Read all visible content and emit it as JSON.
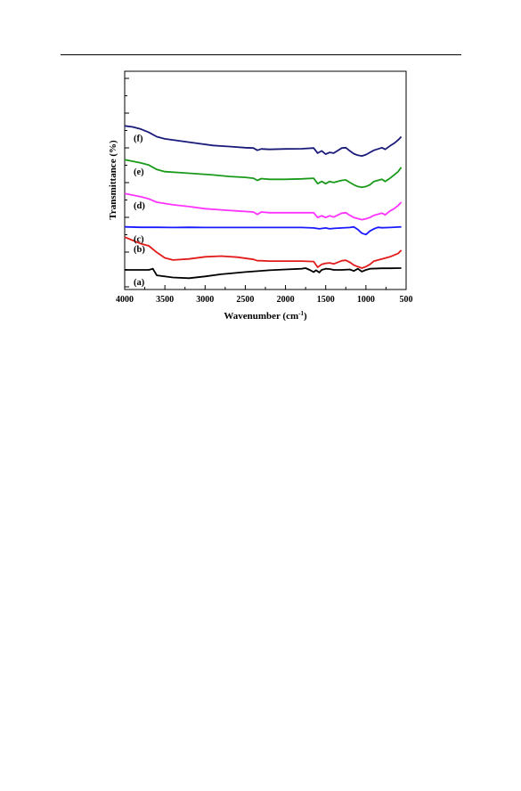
{
  "chart_data": {
    "type": "line",
    "title": "",
    "xlabel": "Wavenumber (cm",
    "xlabel_sup": "-1",
    "xlabel_close": ")",
    "ylabel": "Transmittance (%)",
    "xlim": [
      4000,
      500
    ],
    "x_reversed": true,
    "x_ticks": [
      4000,
      3500,
      3000,
      2500,
      2000,
      1500,
      1000,
      500
    ],
    "x_tick_labels": [
      "4000",
      "3500",
      "3000",
      "2500",
      "2000",
      "1500",
      "1000",
      "500"
    ],
    "y_ticks_labeled": false,
    "grid": false,
    "legend": "none",
    "series": [
      {
        "name": "(a)",
        "color": "#000000",
        "points": [
          [
            4000,
            0.91
          ],
          [
            3700,
            0.91
          ],
          [
            3650,
            0.905
          ],
          [
            3600,
            0.935
          ],
          [
            3400,
            0.945
          ],
          [
            3200,
            0.948
          ],
          [
            3000,
            0.94
          ],
          [
            2800,
            0.93
          ],
          [
            2500,
            0.92
          ],
          [
            2200,
            0.912
          ],
          [
            2000,
            0.908
          ],
          [
            1800,
            0.905
          ],
          [
            1750,
            0.902
          ],
          [
            1700,
            0.91
          ],
          [
            1650,
            0.92
          ],
          [
            1620,
            0.912
          ],
          [
            1580,
            0.922
          ],
          [
            1550,
            0.91
          ],
          [
            1500,
            0.905
          ],
          [
            1450,
            0.906
          ],
          [
            1400,
            0.91
          ],
          [
            1300,
            0.91
          ],
          [
            1200,
            0.908
          ],
          [
            1150,
            0.915
          ],
          [
            1100,
            0.905
          ],
          [
            1050,
            0.918
          ],
          [
            1000,
            0.91
          ],
          [
            950,
            0.905
          ],
          [
            800,
            0.903
          ],
          [
            700,
            0.903
          ],
          [
            600,
            0.902
          ],
          [
            560,
            0.902
          ]
        ]
      },
      {
        "name": "(b)",
        "color": "#e21a1a",
        "points": [
          [
            4000,
            0.76
          ],
          [
            3800,
            0.79
          ],
          [
            3700,
            0.8
          ],
          [
            3600,
            0.83
          ],
          [
            3500,
            0.855
          ],
          [
            3400,
            0.865
          ],
          [
            3200,
            0.86
          ],
          [
            3000,
            0.85
          ],
          [
            2800,
            0.847
          ],
          [
            2600,
            0.852
          ],
          [
            2400,
            0.862
          ],
          [
            2350,
            0.868
          ],
          [
            2300,
            0.868
          ],
          [
            2200,
            0.87
          ],
          [
            2000,
            0.87
          ],
          [
            1800,
            0.87
          ],
          [
            1650,
            0.872
          ],
          [
            1600,
            0.898
          ],
          [
            1550,
            0.885
          ],
          [
            1500,
            0.88
          ],
          [
            1450,
            0.878
          ],
          [
            1400,
            0.883
          ],
          [
            1300,
            0.868
          ],
          [
            1250,
            0.866
          ],
          [
            1200,
            0.875
          ],
          [
            1150,
            0.888
          ],
          [
            1100,
            0.895
          ],
          [
            1050,
            0.902
          ],
          [
            1000,
            0.895
          ],
          [
            950,
            0.885
          ],
          [
            900,
            0.87
          ],
          [
            800,
            0.86
          ],
          [
            700,
            0.85
          ],
          [
            600,
            0.835
          ],
          [
            560,
            0.82
          ]
        ]
      },
      {
        "name": "(c)",
        "color": "#1a1aff",
        "points": [
          [
            4000,
            0.713
          ],
          [
            3800,
            0.715
          ],
          [
            3600,
            0.715
          ],
          [
            3400,
            0.716
          ],
          [
            3200,
            0.715
          ],
          [
            3000,
            0.716
          ],
          [
            2800,
            0.716
          ],
          [
            2600,
            0.716
          ],
          [
            2400,
            0.716
          ],
          [
            2200,
            0.716
          ],
          [
            2000,
            0.716
          ],
          [
            1800,
            0.716
          ],
          [
            1650,
            0.718
          ],
          [
            1580,
            0.722
          ],
          [
            1500,
            0.718
          ],
          [
            1450,
            0.722
          ],
          [
            1400,
            0.72
          ],
          [
            1300,
            0.718
          ],
          [
            1200,
            0.716
          ],
          [
            1150,
            0.713
          ],
          [
            1100,
            0.725
          ],
          [
            1050,
            0.742
          ],
          [
            1000,
            0.748
          ],
          [
            950,
            0.732
          ],
          [
            900,
            0.722
          ],
          [
            850,
            0.715
          ],
          [
            800,
            0.717
          ],
          [
            700,
            0.716
          ],
          [
            600,
            0.714
          ],
          [
            560,
            0.713
          ]
        ]
      },
      {
        "name": "(d)",
        "color": "#ff33ff",
        "points": [
          [
            4000,
            0.56
          ],
          [
            3800,
            0.575
          ],
          [
            3700,
            0.585
          ],
          [
            3600,
            0.6
          ],
          [
            3400,
            0.612
          ],
          [
            3200,
            0.62
          ],
          [
            3000,
            0.63
          ],
          [
            2800,
            0.635
          ],
          [
            2600,
            0.64
          ],
          [
            2400,
            0.645
          ],
          [
            2350,
            0.656
          ],
          [
            2300,
            0.645
          ],
          [
            2200,
            0.648
          ],
          [
            2000,
            0.648
          ],
          [
            1800,
            0.648
          ],
          [
            1650,
            0.648
          ],
          [
            1600,
            0.67
          ],
          [
            1550,
            0.662
          ],
          [
            1500,
            0.67
          ],
          [
            1450,
            0.662
          ],
          [
            1400,
            0.668
          ],
          [
            1300,
            0.65
          ],
          [
            1250,
            0.648
          ],
          [
            1200,
            0.66
          ],
          [
            1150,
            0.67
          ],
          [
            1100,
            0.675
          ],
          [
            1050,
            0.68
          ],
          [
            1000,
            0.676
          ],
          [
            950,
            0.67
          ],
          [
            900,
            0.66
          ],
          [
            800,
            0.65
          ],
          [
            760,
            0.658
          ],
          [
            700,
            0.64
          ],
          [
            650,
            0.63
          ],
          [
            600,
            0.615
          ],
          [
            560,
            0.6
          ]
        ]
      },
      {
        "name": "(e)",
        "color": "#1a9a1a",
        "points": [
          [
            4000,
            0.405
          ],
          [
            3800,
            0.42
          ],
          [
            3700,
            0.43
          ],
          [
            3600,
            0.45
          ],
          [
            3500,
            0.46
          ],
          [
            3300,
            0.465
          ],
          [
            3100,
            0.47
          ],
          [
            2900,
            0.475
          ],
          [
            2700,
            0.482
          ],
          [
            2500,
            0.486
          ],
          [
            2400,
            0.49
          ],
          [
            2350,
            0.5
          ],
          [
            2300,
            0.492
          ],
          [
            2200,
            0.495
          ],
          [
            2000,
            0.495
          ],
          [
            1800,
            0.493
          ],
          [
            1650,
            0.49
          ],
          [
            1600,
            0.515
          ],
          [
            1550,
            0.505
          ],
          [
            1500,
            0.515
          ],
          [
            1450,
            0.505
          ],
          [
            1400,
            0.51
          ],
          [
            1300,
            0.5
          ],
          [
            1250,
            0.498
          ],
          [
            1200,
            0.51
          ],
          [
            1150,
            0.52
          ],
          [
            1100,
            0.528
          ],
          [
            1050,
            0.532
          ],
          [
            1000,
            0.528
          ],
          [
            950,
            0.52
          ],
          [
            900,
            0.505
          ],
          [
            800,
            0.495
          ],
          [
            760,
            0.505
          ],
          [
            700,
            0.49
          ],
          [
            650,
            0.475
          ],
          [
            600,
            0.46
          ],
          [
            560,
            0.44
          ]
        ]
      },
      {
        "name": "(f)",
        "color": "#1a1a7a",
        "points": [
          [
            4000,
            0.25
          ],
          [
            3900,
            0.255
          ],
          [
            3800,
            0.265
          ],
          [
            3700,
            0.28
          ],
          [
            3600,
            0.3
          ],
          [
            3500,
            0.31
          ],
          [
            3300,
            0.32
          ],
          [
            3100,
            0.33
          ],
          [
            2900,
            0.34
          ],
          [
            2700,
            0.345
          ],
          [
            2500,
            0.35
          ],
          [
            2400,
            0.352
          ],
          [
            2350,
            0.362
          ],
          [
            2300,
            0.356
          ],
          [
            2200,
            0.358
          ],
          [
            2000,
            0.356
          ],
          [
            1800,
            0.355
          ],
          [
            1650,
            0.352
          ],
          [
            1600,
            0.375
          ],
          [
            1550,
            0.365
          ],
          [
            1500,
            0.38
          ],
          [
            1450,
            0.372
          ],
          [
            1400,
            0.375
          ],
          [
            1300,
            0.352
          ],
          [
            1250,
            0.35
          ],
          [
            1200,
            0.365
          ],
          [
            1150,
            0.378
          ],
          [
            1100,
            0.385
          ],
          [
            1050,
            0.388
          ],
          [
            1000,
            0.382
          ],
          [
            950,
            0.372
          ],
          [
            900,
            0.362
          ],
          [
            800,
            0.35
          ],
          [
            760,
            0.358
          ],
          [
            700,
            0.342
          ],
          [
            650,
            0.33
          ],
          [
            600,
            0.315
          ],
          [
            560,
            0.3
          ]
        ]
      }
    ]
  }
}
